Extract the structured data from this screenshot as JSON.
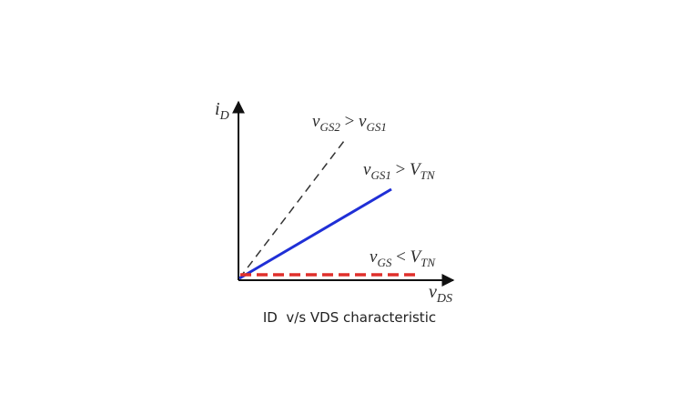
{
  "axes": {
    "y_label_main": "i",
    "y_label_sub": "D",
    "x_label_main": "v",
    "x_label_sub": "DS"
  },
  "curves": {
    "high": {
      "label_v1": "v",
      "label_v1_sub": "GS2",
      "label_op": " > ",
      "label_v2": "v",
      "label_v2_sub": "GS1",
      "color": "#333333",
      "style": "dashed"
    },
    "mid": {
      "label_v1": "v",
      "label_v1_sub": "GS1",
      "label_op": " > ",
      "label_v2": "V",
      "label_v2_sub": "TN",
      "color": "#1f2fd6",
      "style": "solid"
    },
    "off": {
      "label_v1": "v",
      "label_v1_sub": "GS",
      "label_op": " < ",
      "label_v2": "V",
      "label_v2_sub": "TN",
      "color": "#e0302b",
      "style": "dashed"
    }
  },
  "caption": "ID  v/s VDS characteristic"
}
